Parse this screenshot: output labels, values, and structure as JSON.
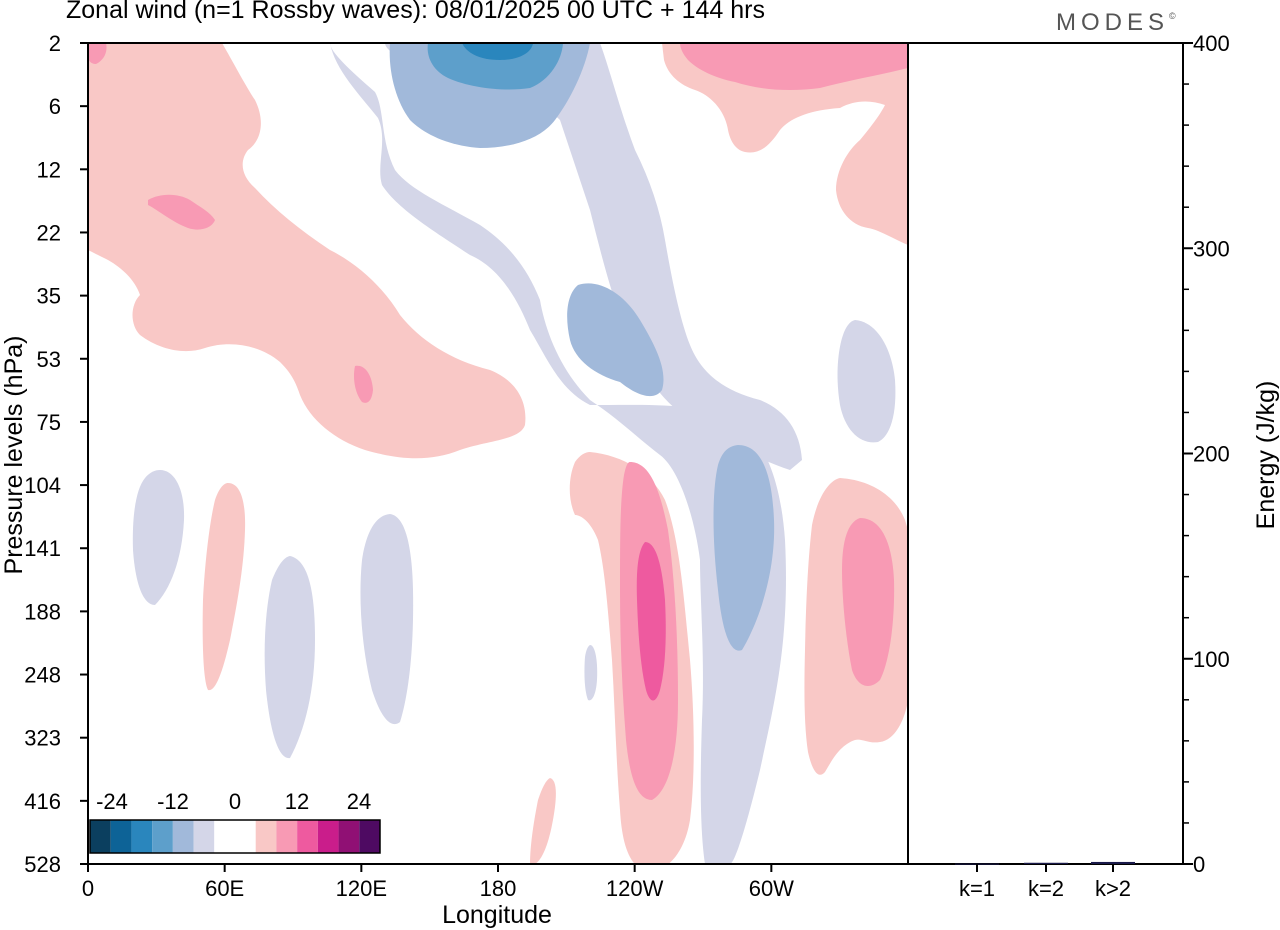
{
  "header": {
    "title": "Zonal wind (n=1 Rossby waves):  08/01/2025  00 UTC  + 144 hrs",
    "brand": "MODES",
    "brand_mark": "©"
  },
  "chart_data": [
    {
      "type": "heatmap",
      "title": "Zonal wind (n=1 Rossby waves):  08/01/2025  00 UTC  + 144 hrs",
      "xlabel": "Longitude",
      "ylabel": "Pressure levels (hPa)",
      "x_ticks": [
        "0",
        "60E",
        "120E",
        "180",
        "120W",
        "60W"
      ],
      "y_ticks": [
        "2",
        "6",
        "12",
        "22",
        "35",
        "53",
        "75",
        "104",
        "141",
        "188",
        "248",
        "323",
        "416",
        "528"
      ],
      "colorbar": {
        "tick_labels": [
          "-24",
          "-12",
          "0",
          "12",
          "24"
        ],
        "colors": [
          "#0b3f5f",
          "#0d6397",
          "#2a86bd",
          "#5d9fcb",
          "#a1b9da",
          "#d4d6e8",
          "#ffffff",
          "#ffffff",
          "#f9c8c6",
          "#f89ab4",
          "#ee5a9f",
          "#ca1d8b",
          "#901074",
          "#4e0a62"
        ]
      },
      "contour_fills": {
        "pos1": "#f9c8c6",
        "pos2": "#f89ab4",
        "pos3": "#ee5a9f",
        "neg1": "#d4d6e8",
        "neg2": "#a1b9da",
        "neg3": "#5d9fcb",
        "neg4": "#2a86bd"
      }
    },
    {
      "type": "bar",
      "categories": [
        "k=1",
        "k=2",
        "k>2"
      ],
      "values": [
        0.2,
        0.6,
        1.0
      ],
      "ylabel": "Energy (J/kg)",
      "y_ticks": [
        "0",
        "100",
        "200",
        "300",
        "400"
      ],
      "ylim": [
        0,
        400
      ],
      "bar_color": "#1a1a4a"
    }
  ]
}
